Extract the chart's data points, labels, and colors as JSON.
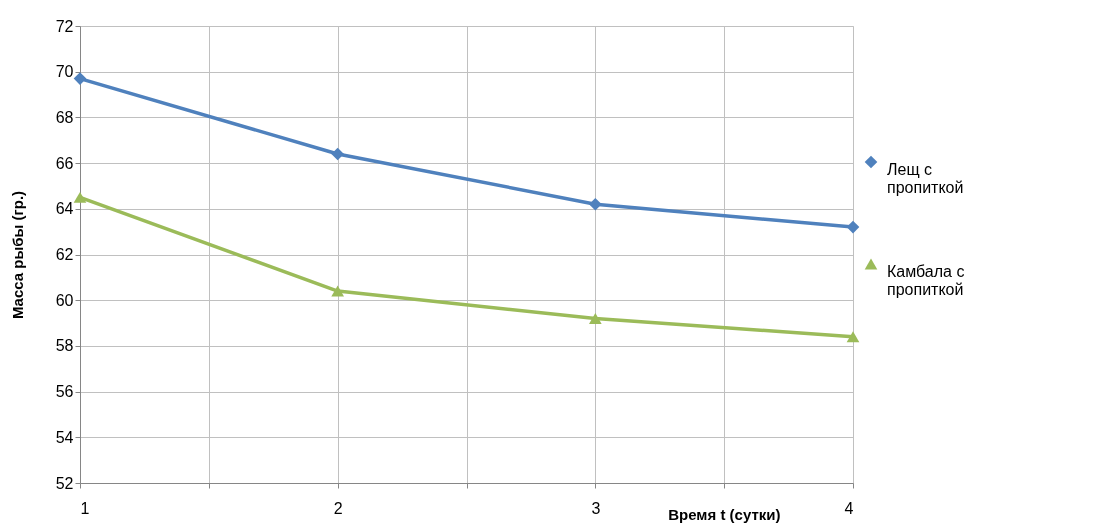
{
  "chart_data": {
    "type": "line",
    "xlabel": "Время t (сутки)",
    "ylabel": "Масса рыбы (гр.)",
    "x": [
      1,
      2,
      3,
      4
    ],
    "series": [
      {
        "name": "Лещ с пропиткой",
        "color": "#4f81bd",
        "marker": "diamond",
        "values": [
          69.7,
          66.4,
          64.2,
          63.2
        ]
      },
      {
        "name": "Камбала с пропиткой",
        "color": "#9bbb59",
        "marker": "triangle",
        "values": [
          64.5,
          60.4,
          59.2,
          58.4
        ]
      }
    ],
    "xlim": [
      1,
      4
    ],
    "xticks": [
      1,
      {
        "value": 1.5,
        "label": null
      },
      2,
      {
        "value": 2.5,
        "label": null
      },
      3,
      {
        "value": 3.5,
        "label": null
      },
      4
    ],
    "ylim": [
      52,
      72
    ],
    "yticks": [
      52,
      54,
      56,
      58,
      60,
      62,
      64,
      66,
      68,
      70,
      72
    ],
    "grid": true,
    "legend": "right",
    "line_style": "solid"
  }
}
